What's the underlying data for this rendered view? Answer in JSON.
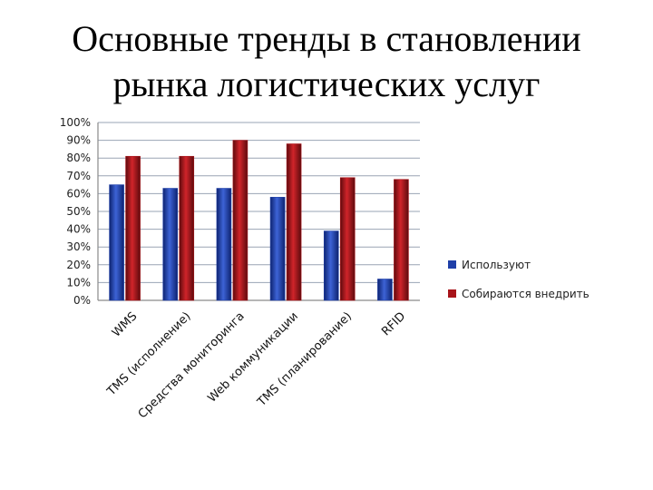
{
  "title": {
    "line1": "Основные тренды в становлении",
    "line2": "рынка логистических услуг"
  },
  "chart_data": {
    "type": "bar",
    "categories": [
      "WMS",
      "TMS (исполнение)",
      "Средства мониторинга",
      "Web коммуникации",
      "TMS (планирование)",
      "RFID"
    ],
    "series": [
      {
        "name": "Используют",
        "values": [
          65,
          63,
          63,
          58,
          39,
          12
        ],
        "color": "#1f3fa8"
      },
      {
        "name": "Собираются внедрить",
        "values": [
          81,
          81,
          90,
          88,
          69,
          68
        ],
        "color": "#a8141a"
      }
    ],
    "ylim": [
      0,
      100
    ],
    "yticks": [
      "0%",
      "10%",
      "20%",
      "30%",
      "40%",
      "50%",
      "60%",
      "70%",
      "80%",
      "90%",
      "100%"
    ],
    "grid": true,
    "legend": "right"
  }
}
